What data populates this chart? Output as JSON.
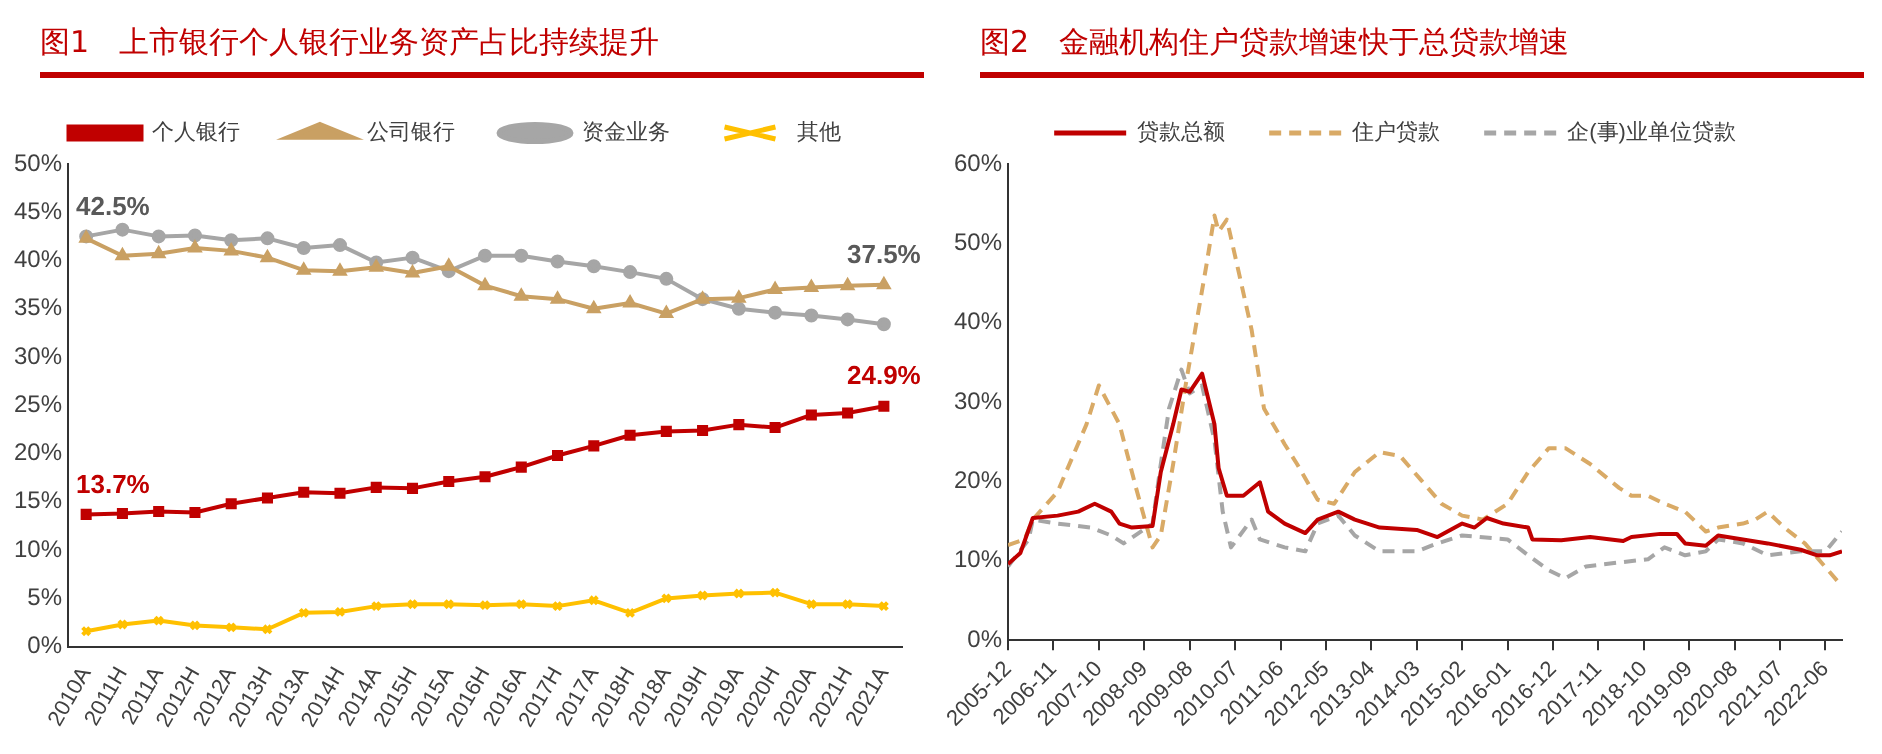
{
  "chart_data": [
    {
      "type": "line",
      "title": "图1　上市银行个人银行业务资产占比持续提升",
      "categories": [
        "2010A",
        "2011H",
        "2011A",
        "2012H",
        "2012A",
        "2013H",
        "2013A",
        "2014H",
        "2014A",
        "2015H",
        "2015A",
        "2016H",
        "2016A",
        "2017H",
        "2017A",
        "2018H",
        "2018A",
        "2019H",
        "2019A",
        "2020H",
        "2020A",
        "2021H",
        "2021A"
      ],
      "series": [
        {
          "name": "个人银行",
          "color": "#c00000",
          "marker": "square",
          "values": [
            13.7,
            13.8,
            14.0,
            13.9,
            14.8,
            15.4,
            16.0,
            15.9,
            16.5,
            16.4,
            17.1,
            17.6,
            18.6,
            19.8,
            20.8,
            21.9,
            22.3,
            22.4,
            23.0,
            22.7,
            24.0,
            24.2,
            24.9
          ]
        },
        {
          "name": "公司银行",
          "color": "#c9a063",
          "marker": "triangle",
          "values": [
            42.3,
            40.5,
            40.7,
            41.3,
            41.0,
            40.3,
            39.0,
            38.9,
            39.3,
            38.7,
            39.4,
            37.4,
            36.3,
            36.0,
            35.0,
            35.6,
            34.5,
            36.0,
            36.1,
            37.0,
            37.2,
            37.4,
            37.5
          ]
        },
        {
          "name": "资金业务",
          "color": "#a6a6a6",
          "marker": "circle",
          "values": [
            42.5,
            43.2,
            42.5,
            42.6,
            42.1,
            42.3,
            41.3,
            41.6,
            39.8,
            40.3,
            38.9,
            40.5,
            40.5,
            39.9,
            39.4,
            38.8,
            38.1,
            36.0,
            35.0,
            34.6,
            34.3,
            33.9,
            33.4
          ]
        },
        {
          "name": "其他",
          "color": "#ffc000",
          "marker": "cross",
          "values": [
            1.6,
            2.3,
            2.7,
            2.2,
            2.0,
            1.8,
            3.5,
            3.6,
            4.2,
            4.4,
            4.4,
            4.3,
            4.4,
            4.2,
            4.8,
            3.5,
            5.0,
            5.3,
            5.5,
            5.6,
            4.4,
            4.4,
            4.2
          ]
        }
      ],
      "ylim": [
        0,
        50
      ],
      "yticks": [
        {
          "value": 0,
          "label": "0%"
        },
        {
          "value": 5,
          "label": "5%"
        },
        {
          "value": 10,
          "label": "10%"
        },
        {
          "value": 15,
          "label": "15%"
        },
        {
          "value": 20,
          "label": "20%"
        },
        {
          "value": 25,
          "label": "25%"
        },
        {
          "value": 30,
          "label": "30%"
        },
        {
          "value": 35,
          "label": "35%"
        },
        {
          "value": 40,
          "label": "40%"
        },
        {
          "value": 45,
          "label": "45%"
        },
        {
          "value": 50,
          "label": "50%"
        }
      ],
      "annotations": [
        {
          "text": "13.7%",
          "x": "2010A",
          "y": 13.7
        },
        {
          "text": "42.5%",
          "x": "2010A",
          "y": 42.5
        },
        {
          "text": "24.9%",
          "x": "2021A",
          "y": 24.9
        },
        {
          "text": "37.5%",
          "x": "2021A",
          "y": 37.5
        }
      ],
      "grid": false,
      "legend": "top"
    },
    {
      "type": "line",
      "title": "图2　金融机构住户贷款增速快于总贷款增速",
      "series": [
        {
          "name": "贷款总额",
          "color": "#c00000",
          "line_style": "solid",
          "x": [
            "2005-12",
            "2006-03",
            "2006-06",
            "2006-12",
            "2007-05",
            "2007-09",
            "2008-01",
            "2008-03",
            "2008-06",
            "2008-11",
            "2009-01",
            "2009-04",
            "2009-06",
            "2009-08",
            "2009-11",
            "2010-02",
            "2010-03",
            "2010-05",
            "2010-09",
            "2011-01",
            "2011-03",
            "2011-07",
            "2011-12",
            "2012-03",
            "2012-08",
            "2012-12",
            "2013-06",
            "2014-03",
            "2014-08",
            "2015-02",
            "2015-05",
            "2015-08",
            "2015-12",
            "2016-06",
            "2016-07",
            "2017-02",
            "2017-09",
            "2018-05",
            "2018-07",
            "2019-02",
            "2019-06",
            "2019-08",
            "2020-01",
            "2020-04",
            "2020-10",
            "2021-04",
            "2021-12",
            "2022-04",
            "2022-07",
            "2022-10"
          ],
          "values": [
            9.6,
            11.0,
            15.4,
            15.7,
            16.2,
            17.2,
            16.2,
            14.7,
            14.2,
            14.4,
            21.2,
            27.2,
            31.6,
            31.3,
            33.6,
            27.2,
            21.7,
            18.2,
            18.2,
            19.9,
            16.2,
            14.7,
            13.5,
            15.2,
            16.2,
            15.2,
            14.2,
            13.9,
            13.0,
            14.7,
            14.2,
            15.4,
            14.7,
            14.2,
            12.7,
            12.6,
            13.0,
            12.5,
            13.0,
            13.4,
            13.4,
            12.2,
            11.9,
            13.2,
            12.7,
            12.2,
            11.4,
            10.7,
            10.7,
            11.2
          ]
        },
        {
          "name": "住户贷款",
          "color": "#d9aa66",
          "line_style": "dashed",
          "x": [
            "2005-12",
            "2006-04",
            "2006-06",
            "2006-12",
            "2007-07",
            "2007-10",
            "2008-03",
            "2008-07",
            "2008-11",
            "2009-01",
            "2009-04",
            "2009-07",
            "2009-12",
            "2010-02",
            "2010-03",
            "2010-05",
            "2010-08",
            "2010-11",
            "2011-02",
            "2011-07",
            "2011-10",
            "2012-03",
            "2012-07",
            "2012-12",
            "2013-06",
            "2013-11",
            "2014-04",
            "2014-09",
            "2015-02",
            "2015-07",
            "2016-01",
            "2016-06",
            "2016-11",
            "2017-03",
            "2017-09",
            "2018-04",
            "2018-07",
            "2018-11",
            "2019-03",
            "2019-08",
            "2020-01",
            "2020-04",
            "2020-10",
            "2021-01",
            "2021-04",
            "2021-08",
            "2022-01",
            "2022-05",
            "2022-10"
          ],
          "values": [
            12.0,
            12.7,
            15.2,
            18.7,
            27.2,
            32.1,
            27.2,
            19.2,
            11.7,
            13.2,
            22.2,
            32.1,
            47.1,
            53.5,
            51.5,
            53.0,
            46.1,
            39.1,
            29.2,
            24.7,
            22.2,
            17.7,
            17.2,
            21.2,
            23.7,
            23.2,
            20.2,
            17.2,
            15.7,
            15.2,
            17.2,
            21.2,
            24.2,
            24.2,
            22.2,
            19.2,
            18.2,
            18.2,
            17.2,
            16.2,
            13.7,
            14.2,
            14.7,
            15.2,
            16.2,
            14.2,
            12.2,
            9.8,
            6.8
          ]
        },
        {
          "name": "企(事)业单位贷款",
          "color": "#a6a6a6",
          "line_style": "dashed",
          "x": [
            "2005-12",
            "2006-05",
            "2006-06",
            "2006-12",
            "2007-08",
            "2008-01",
            "2008-04",
            "2008-11",
            "2009-01",
            "2009-03",
            "2009-06",
            "2009-08",
            "2009-11",
            "2010-02",
            "2010-04",
            "2010-06",
            "2010-11",
            "2011-01",
            "2011-07",
            "2011-12",
            "2012-03",
            "2012-08",
            "2012-12",
            "2013-06",
            "2014-03",
            "2014-08",
            "2015-02",
            "2016-01",
            "2016-06",
            "2016-11",
            "2017-03",
            "2017-08",
            "2018-04",
            "2018-11",
            "2019-03",
            "2019-08",
            "2020-01",
            "2020-04",
            "2020-10",
            "2021-04",
            "2021-12",
            "2022-06",
            "2022-10"
          ],
          "values": [
            9.3,
            12.7,
            15.2,
            14.7,
            14.2,
            13.2,
            12.2,
            14.7,
            22.2,
            29.2,
            34.1,
            31.1,
            32.1,
            25.2,
            16.2,
            11.7,
            15.2,
            12.7,
            11.7,
            11.2,
            14.7,
            15.7,
            13.2,
            11.2,
            11.2,
            12.2,
            13.2,
            12.7,
            10.7,
            8.8,
            7.8,
            9.3,
            9.8,
            10.2,
            11.7,
            10.7,
            11.2,
            12.7,
            12.2,
            10.7,
            11.2,
            11.2,
            13.7
          ]
        }
      ],
      "xlim": [
        "2005-12",
        "2022-10"
      ],
      "xticks": [
        "2005-12",
        "2006-11",
        "2007-10",
        "2008-09",
        "2009-08",
        "2010-07",
        "2011-06",
        "2012-05",
        "2013-04",
        "2014-03",
        "2015-02",
        "2016-01",
        "2016-12",
        "2017-11",
        "2018-10",
        "2019-09",
        "2020-08",
        "2021-07",
        "2022-06"
      ],
      "ylim": [
        0,
        60
      ],
      "yticks": [
        {
          "value": 0,
          "label": "0%"
        },
        {
          "value": 10,
          "label": "10%"
        },
        {
          "value": 20,
          "label": "20%"
        },
        {
          "value": 30,
          "label": "30%"
        },
        {
          "value": 40,
          "label": "40%"
        },
        {
          "value": 50,
          "label": "50%"
        },
        {
          "value": 60,
          "label": "60%"
        }
      ],
      "marker": "none",
      "grid": false,
      "legend": "top"
    }
  ]
}
